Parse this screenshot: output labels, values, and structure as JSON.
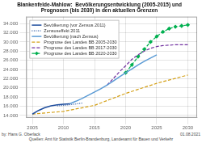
{
  "chart_data": {
    "type": "line",
    "title": [
      "Blankenfelde-Mahlow:  Bevölkerungsentwicklung (2005-2015) und",
      "Prognosen (bis 2030) in den aktuellen Grenzen"
    ],
    "annotations": [
      "by: Hans G. Oberlack",
      "Quellen: Amt für Statistik Berlin-Brandenburg, Landesamt für Bauen und Verkehr",
      "01.08.2021"
    ],
    "series": [
      {
        "name": "Bevölkerung (vor Zensus 2011)",
        "color": "#1f4e9e",
        "line_style": "solid",
        "x": [
          2005,
          2006,
          2007,
          2008,
          2009,
          2010,
          2011
        ],
        "values": [
          14300,
          15100,
          15700,
          16100,
          16300,
          16450,
          16550
        ]
      },
      {
        "name": "Zensuseffekt 2011",
        "color": "#1f4e9e",
        "line_style": "dotted",
        "x": [
          2009,
          2010,
          2011,
          2012,
          2013
        ],
        "values": [
          16100,
          16200,
          16350,
          16500,
          16700
        ]
      },
      {
        "name": "Bevölkerung (nach Zensus)",
        "color": "#5b9bd5",
        "line_style": "solid",
        "x": [
          2011,
          2012,
          2013,
          2014,
          2015,
          2016,
          2017,
          2018,
          2019,
          2020,
          2021,
          2022,
          2023,
          2024,
          2025
        ],
        "values": [
          16550,
          17100,
          17700,
          18400,
          19100,
          19800,
          20600,
          21500,
          22400,
          23300,
          24100,
          25000,
          25800,
          26500,
          27200
        ]
      },
      {
        "name": "Prognose des Landes BB 2005-2030",
        "color": "#d4a017",
        "line_style": "dashed",
        "x": [
          2005,
          2007,
          2010,
          2015,
          2020,
          2025,
          2030
        ],
        "values": [
          14300,
          14550,
          14900,
          16200,
          18800,
          21000,
          22800
        ]
      },
      {
        "name": "Prognose des Landes BB 2017-2030",
        "color": "#7030a0",
        "line_style": "dashed",
        "x": [
          2017,
          2018,
          2019,
          2020,
          2021,
          2022,
          2023,
          2024,
          2025,
          2026,
          2027,
          2028,
          2029,
          2030
        ],
        "values": [
          20600,
          22000,
          23500,
          24800,
          26200,
          27200,
          28000,
          28600,
          29000,
          29200,
          29300,
          29400,
          29400,
          29400
        ]
      },
      {
        "name": "Prognose des Landes BB 2020-2030",
        "color": "#00b050",
        "line_style": "dashed",
        "marker": "diamond",
        "x": [
          2020,
          2021,
          2022,
          2023,
          2024,
          2025,
          2026,
          2027,
          2028,
          2029,
          2030
        ],
        "values": [
          23300,
          25000,
          26800,
          28400,
          30000,
          31200,
          32200,
          32900,
          33300,
          33500,
          33700
        ]
      }
    ],
    "xlim": [
      2004.0,
      2031.5
    ],
    "xticks": [
      2005,
      2010,
      2015,
      2020,
      2025,
      2030
    ],
    "ylim": [
      13500,
      35500
    ],
    "yticks": [
      {
        "value": 14000,
        "label": "14.000"
      },
      {
        "value": 16000,
        "label": "16.000"
      },
      {
        "value": 18000,
        "label": "18.000"
      },
      {
        "value": 20000,
        "label": "20.000"
      },
      {
        "value": 22000,
        "label": "22.000"
      },
      {
        "value": 24000,
        "label": "24.000"
      },
      {
        "value": 26000,
        "label": "26.000"
      },
      {
        "value": 28000,
        "label": "28.000"
      },
      {
        "value": 30000,
        "label": "30.000"
      },
      {
        "value": 32000,
        "label": "32.000"
      },
      {
        "value": 34000,
        "label": "34.000"
      }
    ],
    "grid": true,
    "legend": "upper left"
  }
}
